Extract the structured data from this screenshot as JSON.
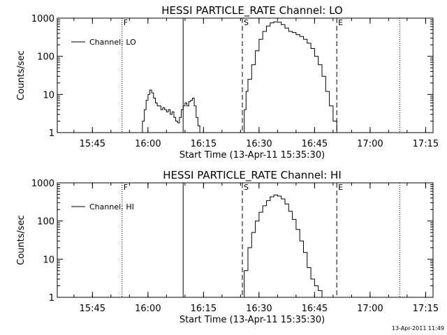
{
  "footer": {
    "timestamp": "13-Apr-2011 11:49"
  },
  "chart_data": [
    {
      "type": "line",
      "title": "HESSI PARTICLE_RATE Channel: LO",
      "xlabel": "Start Time (13-Apr-11 15:35:30)",
      "ylabel": "Counts/sec",
      "y_scale": "log",
      "xlim": [
        "15:35:30",
        "17:17:00"
      ],
      "ylim": [
        1,
        1000
      ],
      "x_ticks": [
        "15:45",
        "16:00",
        "16:15",
        "16:30",
        "16:45",
        "17:00",
        "17:15"
      ],
      "y_ticks": [
        "1",
        "10",
        "100",
        "1000"
      ],
      "legend": {
        "position": "top-left",
        "entries": [
          "Channel: LO"
        ]
      },
      "markers": [
        {
          "label": "F",
          "time": "15:53:00",
          "style": "dotted"
        },
        {
          "label": "",
          "time": "16:09:30",
          "style": "solid"
        },
        {
          "label": "S",
          "time": "16:25:30",
          "style": "dashed"
        },
        {
          "label": "E",
          "time": "16:51:00",
          "style": "dashed"
        },
        {
          "label": "",
          "time": "17:08:00",
          "style": "dotted"
        }
      ],
      "series": [
        {
          "name": "Channel: LO",
          "segments": [
            {
              "x": [
                "15:58:00",
                "15:58:30",
                "15:59:00",
                "15:59:30",
                "16:00:00",
                "16:00:30",
                "16:01:00",
                "16:01:30",
                "16:02:00",
                "16:02:30",
                "16:03:00",
                "16:03:30",
                "16:04:00",
                "16:04:30",
                "16:05:00",
                "16:05:30",
                "16:06:00",
                "16:06:30",
                "16:07:00",
                "16:07:30",
                "16:08:00",
                "16:08:30",
                "16:09:00",
                "16:09:30",
                "16:10:00",
                "16:10:30",
                "16:11:00",
                "16:11:30",
                "16:12:00",
                "16:12:30",
                "16:13:00",
                "16:13:30",
                "16:14:00"
              ],
              "y": [
                1,
                2,
                4,
                7,
                10,
                13,
                11,
                8,
                6,
                5,
                5,
                4,
                4.5,
                4,
                3.5,
                4,
                3,
                3.5,
                2.5,
                2,
                1.8,
                2.5,
                4,
                5,
                6,
                5,
                6.5,
                7,
                8,
                5,
                2.5,
                1.5,
                1
              ]
            },
            {
              "x": [
                "16:25:30",
                "16:26:00",
                "16:26:30",
                "16:27:00",
                "16:28:00",
                "16:29:00",
                "16:30:00",
                "16:31:00",
                "16:32:00",
                "16:33:00",
                "16:34:00",
                "16:35:00",
                "16:36:00",
                "16:37:00",
                "16:38:00",
                "16:39:00",
                "16:40:00",
                "16:41:00",
                "16:42:00",
                "16:43:00",
                "16:44:00",
                "16:45:00",
                "16:46:00",
                "16:47:00",
                "16:48:00",
                "16:49:00",
                "16:50:00",
                "16:51:00"
              ],
              "y": [
                1,
                4,
                12,
                25,
                60,
                140,
                280,
                450,
                620,
                750,
                800,
                780,
                680,
                550,
                450,
                420,
                370,
                330,
                280,
                220,
                160,
                100,
                60,
                30,
                12,
                5,
                2,
                1
              ]
            }
          ]
        }
      ]
    },
    {
      "type": "line",
      "title": "HESSI PARTICLE_RATE Channel: HI",
      "xlabel": "Start Time (13-Apr-11 15:35:30)",
      "ylabel": "Counts/sec",
      "y_scale": "log",
      "xlim": [
        "15:35:30",
        "17:17:00"
      ],
      "ylim": [
        1,
        1000
      ],
      "x_ticks": [
        "15:45",
        "16:00",
        "16:15",
        "16:30",
        "16:45",
        "17:00",
        "17:15"
      ],
      "y_ticks": [
        "1",
        "10",
        "100",
        "1000"
      ],
      "legend": {
        "position": "top-left",
        "entries": [
          "Channel: HI"
        ]
      },
      "markers": [
        {
          "label": "F",
          "time": "15:53:00",
          "style": "dotted"
        },
        {
          "label": "",
          "time": "16:09:30",
          "style": "solid"
        },
        {
          "label": "S",
          "time": "16:25:30",
          "style": "dashed"
        },
        {
          "label": "E",
          "time": "16:51:00",
          "style": "dashed"
        },
        {
          "label": "",
          "time": "17:08:00",
          "style": "dotted"
        }
      ],
      "series": [
        {
          "name": "Channel: HI",
          "segments": [
            {
              "x": [
                "16:25:30",
                "16:26:00",
                "16:27:00",
                "16:28:00",
                "16:29:00",
                "16:30:00",
                "16:31:00",
                "16:32:00",
                "16:33:00",
                "16:34:00",
                "16:35:00",
                "16:36:00",
                "16:37:00",
                "16:38:00",
                "16:39:00",
                "16:40:00",
                "16:41:00",
                "16:42:00",
                "16:43:00",
                "16:44:00",
                "16:45:00",
                "16:46:00",
                "16:47:00"
              ],
              "y": [
                1,
                5,
                20,
                50,
                100,
                170,
                250,
                340,
                430,
                480,
                450,
                380,
                280,
                180,
                110,
                60,
                30,
                15,
                6,
                3,
                2,
                1.5,
                1
              ]
            }
          ]
        }
      ]
    }
  ]
}
